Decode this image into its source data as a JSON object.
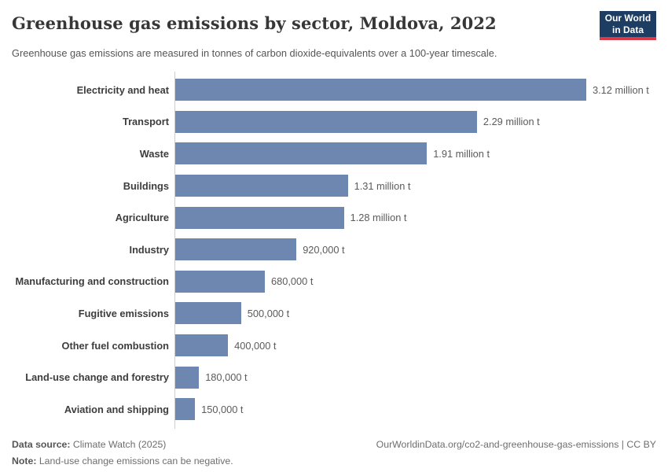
{
  "header": {
    "title": "Greenhouse gas emissions by sector, Moldova, 2022",
    "subtitle": "Greenhouse gas emissions are measured in tonnes of carbon dioxide-equivalents over a 100-year timescale.",
    "logo": {
      "line1": "Our World",
      "line2": "in Data",
      "bg_color": "#1d3d63",
      "accent_color": "#d93a46"
    }
  },
  "chart_data": {
    "type": "bar",
    "orientation": "horizontal",
    "title": "Greenhouse gas emissions by sector, Moldova, 2022",
    "unit": "tonnes of carbon dioxide-equivalents",
    "categories": [
      "Electricity and heat",
      "Transport",
      "Waste",
      "Buildings",
      "Agriculture",
      "Industry",
      "Manufacturing and construction",
      "Fugitive emissions",
      "Other fuel combustion",
      "Land-use change and forestry",
      "Aviation and shipping"
    ],
    "values_million_t": [
      3.12,
      2.29,
      1.91,
      1.31,
      1.28,
      0.92,
      0.68,
      0.5,
      0.4,
      0.18,
      0.15
    ],
    "value_labels": [
      "3.12 million t",
      "2.29 million t",
      "1.91 million t",
      "1.31 million t",
      "1.28 million t",
      "920,000 t",
      "680,000 t",
      "500,000 t",
      "400,000 t",
      "180,000 t",
      "150,000 t"
    ],
    "xlim": [
      0,
      3.12
    ],
    "grid": false,
    "legend": false,
    "bar_color": "#6e87b1",
    "axis_line_color": "#cdcdcd"
  },
  "footer": {
    "data_source_label": "Data source:",
    "data_source_value": "Climate Watch (2025)",
    "note_label": "Note:",
    "note_value": "Land-use change emissions can be negative.",
    "right_text": "OurWorldinData.org/co2-and-greenhouse-gas-emissions | CC BY"
  }
}
